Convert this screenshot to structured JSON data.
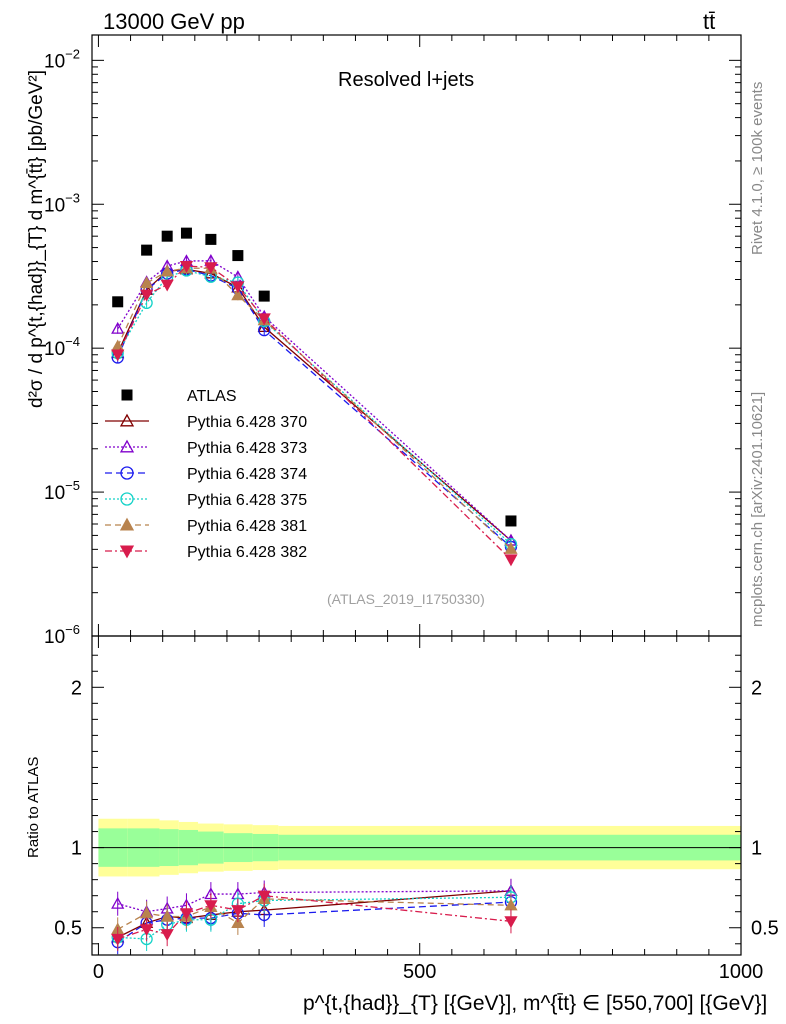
{
  "header": {
    "left_title": "13000 GeV pp",
    "right_title": "tt̄"
  },
  "side_labels": {
    "rivet": "Rivet 4.1.0, ≥ 100k events",
    "mcplots": "mcplots.cern.ch [arXiv:2401.10621]"
  },
  "chart_data": {
    "type": "scatter",
    "title": "Resolved l+jets",
    "watermark": "(ATLAS_2019_I1750330)",
    "xlabel": "p^{t,{had}}_{T} [{GeV}], m^{t̄t} ∈ [550,700] [{GeV}]",
    "ylabel": "d²σ / d p^{t,{had}}_{T} d m^{t̄t} [pb/GeV²]",
    "ratio_ylabel": "Ratio to ATLAS",
    "xlim": [
      -10,
      1000
    ],
    "ylim": [
      1e-06,
      0.015
    ],
    "ratio_ylim": [
      0.33,
      2.32
    ],
    "x_ticks": [
      0,
      500,
      1000
    ],
    "y_ticks": [
      {
        "value": 0.01,
        "base": "10",
        "exp": "−2"
      },
      {
        "value": 0.001,
        "base": "10",
        "exp": "−3"
      },
      {
        "value": 0.0001,
        "base": "10",
        "exp": "−4"
      },
      {
        "value": 1e-05,
        "base": "10",
        "exp": "−5"
      },
      {
        "value": 1e-06,
        "base": "10",
        "exp": "−6"
      }
    ],
    "ratio_ticks": [
      0.5,
      1,
      2
    ],
    "x": [
      30,
      75,
      107,
      137,
      175,
      217,
      258,
      642
    ],
    "atlas": {
      "name": "ATLAS",
      "values": [
        0.00021,
        0.00048,
        0.0006,
        0.00063,
        0.00057,
        0.00044,
        0.00023,
        6.3e-06
      ],
      "band_edges": [
        0,
        45,
        95,
        125,
        155,
        195,
        240,
        280,
        1000
      ],
      "band_inner": [
        0.12,
        0.12,
        0.115,
        0.11,
        0.1,
        0.09,
        0.085,
        0.08
      ],
      "band_outer": [
        0.18,
        0.18,
        0.17,
        0.16,
        0.15,
        0.145,
        0.14,
        0.135
      ]
    },
    "series": [
      {
        "name": "Pythia 6.428 370",
        "color": "#800000",
        "dash": "",
        "marker": "triangle-open",
        "ratio": [
          0.44,
          0.53,
          0.57,
          0.56,
          0.58,
          0.6,
          0.61,
          0.73
        ]
      },
      {
        "name": "Pythia 6.428 373",
        "color": "#8000cc",
        "dash": "2,2",
        "marker": "triangle-open",
        "ratio": [
          0.65,
          0.6,
          0.62,
          0.64,
          0.71,
          0.71,
          0.72,
          0.73
        ]
      },
      {
        "name": "Pythia 6.428 374",
        "color": "#1a1aee",
        "dash": "7,4",
        "marker": "circle-open",
        "ratio": [
          0.41,
          0.53,
          0.55,
          0.56,
          0.56,
          0.59,
          0.58,
          0.66
        ]
      },
      {
        "name": "Pythia 6.428 375",
        "color": "#14d2c8",
        "dash": "2,2",
        "marker": "circle-open",
        "ratio": [
          0.44,
          0.43,
          0.52,
          0.55,
          0.55,
          0.65,
          0.67,
          0.69
        ]
      },
      {
        "name": "Pythia 6.428 381",
        "color": "#b8834e",
        "dash": "6,4",
        "marker": "triangle-filled",
        "ratio": [
          0.49,
          0.59,
          0.57,
          0.57,
          0.63,
          0.53,
          0.68,
          0.64
        ]
      },
      {
        "name": "Pythia 6.428 382",
        "color": "#d81c4c",
        "dash": "7,3,2,3",
        "marker": "triangle-down-filled",
        "ratio": [
          0.43,
          0.49,
          0.46,
          0.59,
          0.64,
          0.61,
          0.7,
          0.54
        ]
      }
    ]
  }
}
